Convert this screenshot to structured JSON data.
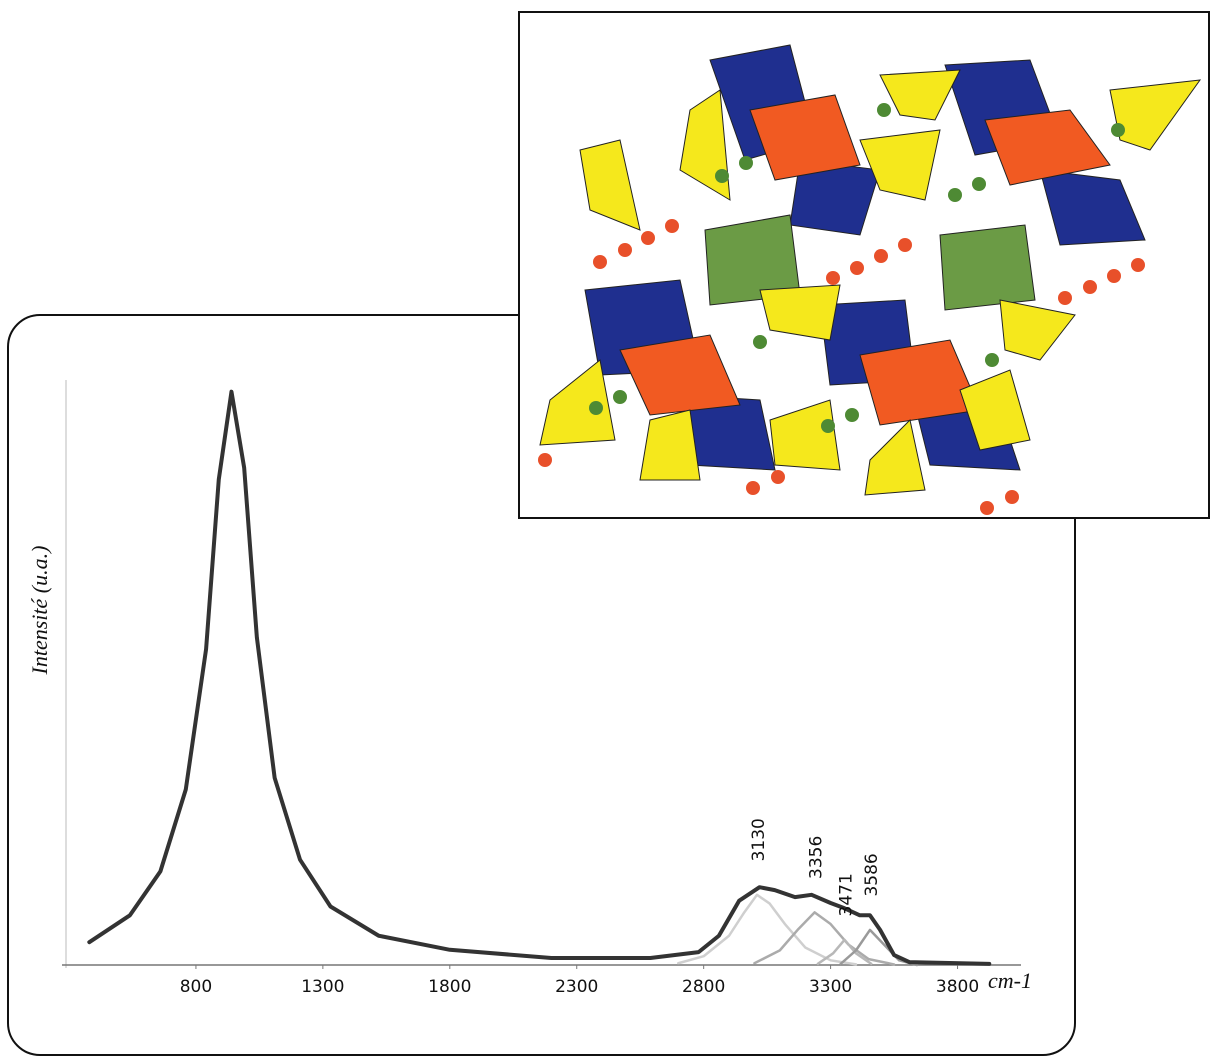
{
  "chart_data": {
    "type": "line",
    "ylabel": "Intensité (u.a.)",
    "xlabel": "cm-1",
    "xlim": [
      300,
      4050
    ],
    "ylim": [
      0,
      100
    ],
    "xticks": [
      800,
      1300,
      1800,
      2300,
      2800,
      3300,
      3800
    ],
    "annotations": [
      "3130",
      "3356",
      "3471",
      "3586"
    ],
    "series": [
      {
        "color": "#333333",
        "x": [
          380,
          540,
          660,
          760,
          840,
          890,
          940,
          990,
          1040,
          1110,
          1210,
          1330,
          1520,
          1800,
          2200,
          2590,
          2780,
          2860,
          2940,
          3020,
          3080,
          3160,
          3225,
          3300,
          3355,
          3415,
          3455,
          3495,
          3550,
          3610,
          3925
        ],
        "values": [
          3.9,
          8.5,
          16,
          30,
          54,
          83,
          98,
          85,
          56,
          32,
          18,
          10,
          5,
          2.6,
          1.2,
          1.2,
          2.2,
          5,
          11,
          13.3,
          12.8,
          11.6,
          12,
          10.6,
          9.7,
          8.5,
          8.5,
          6,
          1.7,
          0.5,
          0.2
        ]
      },
      {
        "color": "#cfcfcf",
        "x": [
          2700,
          2800,
          2900,
          2960,
          3010,
          3060,
          3120,
          3200,
          3300,
          3400
        ],
        "values": [
          0.3,
          1.5,
          5,
          9,
          12,
          10.5,
          7,
          3,
          0.8,
          0.1
        ]
      },
      {
        "color": "#ababab",
        "x": [
          3000,
          3100,
          3170,
          3237,
          3300,
          3370,
          3450,
          3550
        ],
        "values": [
          0.3,
          2.5,
          6,
          9,
          7,
          3.5,
          1,
          0.1
        ]
      },
      {
        "color": "#b8b8b8",
        "x": [
          3250,
          3310,
          3355,
          3400,
          3460
        ],
        "values": [
          0.2,
          2,
          4.3,
          2,
          0.2
        ]
      },
      {
        "color": "#9a9a9a",
        "x": [
          3340,
          3400,
          3455,
          3510,
          3570,
          3640
        ],
        "values": [
          0.2,
          2.5,
          6,
          3.5,
          0.8,
          0
        ]
      }
    ]
  }
}
